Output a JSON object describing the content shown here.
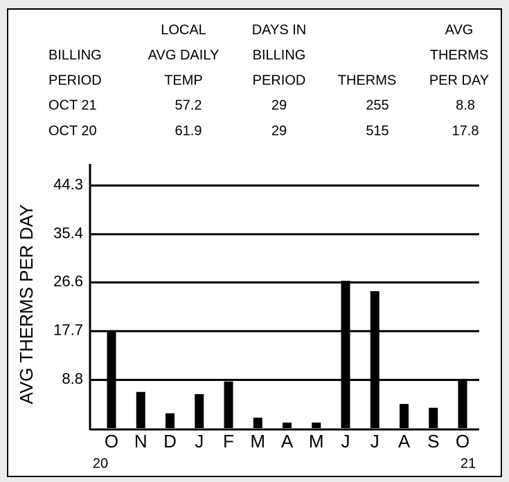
{
  "table": {
    "headers": [
      [
        "BILLING",
        "PERIOD"
      ],
      [
        "LOCAL",
        "AVG DAILY",
        "TEMP"
      ],
      [
        "DAYS IN",
        "BILLING",
        "PERIOD"
      ],
      [
        "THERMS"
      ],
      [
        "AVG",
        "THERMS",
        "PER DAY"
      ]
    ],
    "rows": [
      [
        "OCT 21",
        "57.2",
        "29",
        "255",
        "8.8"
      ],
      [
        "OCT 20",
        "61.9",
        "29",
        "515",
        "17.8"
      ]
    ]
  },
  "chart_data": {
    "type": "bar",
    "y_label": "AVG THERMS PER DAY",
    "categories": [
      "O",
      "N",
      "D",
      "J",
      "F",
      "M",
      "A",
      "M",
      "J",
      "J",
      "A",
      "S",
      "O"
    ],
    "category_years": [
      "20",
      null,
      null,
      null,
      null,
      null,
      null,
      null,
      null,
      null,
      null,
      null,
      "21"
    ],
    "values": [
      17.8,
      6.6,
      2.7,
      6.2,
      8.5,
      1.9,
      1.0,
      1.0,
      26.9,
      25.0,
      4.4,
      3.7,
      8.8
    ],
    "color": "#000000",
    "ylim": [
      0,
      48
    ],
    "yticks": [
      8.8,
      17.7,
      26.6,
      35.4,
      44.3
    ],
    "grid": true
  }
}
